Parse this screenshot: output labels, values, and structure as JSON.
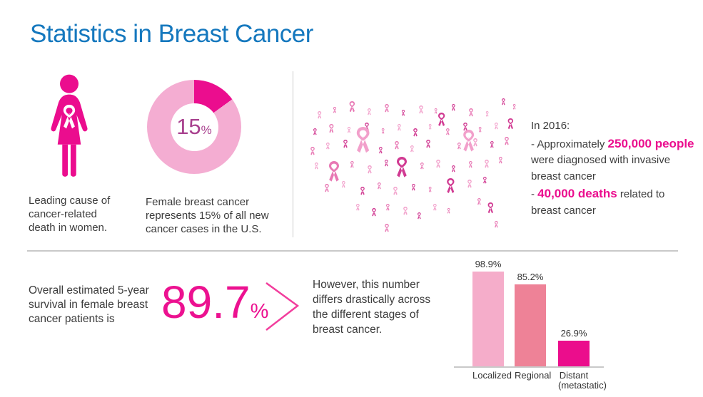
{
  "title": {
    "text": "Statistics in Breast Cancer",
    "color": "#1578BE"
  },
  "palette": {
    "title_blue": "#1578BE",
    "magenta": "#EB0D8E",
    "text_dark": "#3C3C3C",
    "divider_gray": "#C9C9C9"
  },
  "leading_cause": {
    "caption": "Leading cause of cancer-related death in women.",
    "figure_color": "#EB0D8E",
    "ribbon_color": "#FFFFFF"
  },
  "donut": {
    "percent": 15,
    "value": "15",
    "unit": "%",
    "ring_color": "#F4ADD2",
    "slice_color": "#EB0D8E",
    "label_color": "#A8408E",
    "caption": "Female breast cancer represents 15% of all new cancer cases in the U.S."
  },
  "map_section": {
    "heading": "In 2016:",
    "line1": {
      "prefix": "- Approximately ",
      "highlight": "250,000 people",
      "suffix": " were diagnosed with invasive breast cancer"
    },
    "line2": {
      "prefix": "- ",
      "highlight": "40,000 deaths",
      "suffix": " related to breast cancer"
    },
    "highlight_color": "#EB0D8E",
    "ribbon_palette": [
      "#F6BFDC",
      "#F2A0CB",
      "#E878B4",
      "#D13A92"
    ],
    "ribbons": [
      [
        14,
        30,
        11,
        1
      ],
      [
        36,
        24,
        9,
        2
      ],
      [
        58,
        16,
        16,
        2
      ],
      [
        84,
        26,
        10,
        1
      ],
      [
        108,
        20,
        12,
        2
      ],
      [
        132,
        28,
        9,
        3
      ],
      [
        156,
        22,
        12,
        1
      ],
      [
        178,
        26,
        8,
        2
      ],
      [
        202,
        20,
        10,
        3
      ],
      [
        226,
        26,
        12,
        2
      ],
      [
        250,
        30,
        8,
        1
      ],
      [
        272,
        12,
        10,
        3
      ],
      [
        288,
        20,
        8,
        2
      ],
      [
        8,
        54,
        10,
        3
      ],
      [
        30,
        48,
        13,
        2
      ],
      [
        56,
        52,
        9,
        1
      ],
      [
        80,
        46,
        12,
        3
      ],
      [
        104,
        54,
        8,
        2
      ],
      [
        126,
        48,
        10,
        1
      ],
      [
        148,
        54,
        12,
        3
      ],
      [
        170,
        48,
        8,
        1
      ],
      [
        194,
        54,
        10,
        2
      ],
      [
        218,
        46,
        12,
        3
      ],
      [
        240,
        52,
        8,
        2
      ],
      [
        262,
        46,
        10,
        1
      ],
      [
        280,
        40,
        16,
        3
      ],
      [
        4,
        80,
        12,
        2
      ],
      [
        26,
        74,
        10,
        1
      ],
      [
        50,
        70,
        12,
        3
      ],
      [
        66,
        52,
        38,
        1
      ],
      [
        100,
        80,
        10,
        3
      ],
      [
        122,
        72,
        12,
        2
      ],
      [
        144,
        78,
        10,
        1
      ],
      [
        166,
        70,
        12,
        3
      ],
      [
        182,
        32,
        20,
        3
      ],
      [
        210,
        74,
        10,
        2
      ],
      [
        232,
        68,
        12,
        1
      ],
      [
        216,
        56,
        32,
        1
      ],
      [
        256,
        72,
        10,
        3
      ],
      [
        276,
        66,
        12,
        2
      ],
      [
        10,
        102,
        10,
        1
      ],
      [
        28,
        100,
        30,
        2
      ],
      [
        60,
        100,
        10,
        2
      ],
      [
        84,
        106,
        12,
        1
      ],
      [
        108,
        98,
        10,
        3
      ],
      [
        123,
        94,
        30,
        3
      ],
      [
        158,
        102,
        10,
        2
      ],
      [
        180,
        98,
        12,
        1
      ],
      [
        202,
        106,
        10,
        3
      ],
      [
        194,
        124,
        22,
        3
      ],
      [
        226,
        100,
        10,
        2
      ],
      [
        248,
        98,
        12,
        1
      ],
      [
        268,
        94,
        10,
        2
      ],
      [
        24,
        132,
        12,
        2
      ],
      [
        48,
        128,
        10,
        1
      ],
      [
        74,
        136,
        12,
        3
      ],
      [
        98,
        130,
        10,
        2
      ],
      [
        120,
        136,
        12,
        1
      ],
      [
        146,
        132,
        10,
        3
      ],
      [
        170,
        136,
        8,
        2
      ],
      [
        224,
        126,
        12,
        1
      ],
      [
        246,
        122,
        10,
        3
      ],
      [
        68,
        160,
        10,
        1
      ],
      [
        90,
        166,
        12,
        3
      ],
      [
        110,
        160,
        10,
        2
      ],
      [
        134,
        164,
        12,
        1
      ],
      [
        154,
        172,
        10,
        3
      ],
      [
        176,
        160,
        10,
        1
      ],
      [
        196,
        166,
        8,
        2
      ],
      [
        238,
        152,
        10,
        2
      ],
      [
        252,
        158,
        16,
        3
      ],
      [
        262,
        184,
        10,
        2
      ],
      [
        108,
        188,
        12,
        2
      ]
    ]
  },
  "survival": {
    "lead": "Overall estimated 5-year survival in female breast cancer patients is",
    "value": "89.7",
    "unit": "%",
    "value_color": "#EC1190",
    "arrow_color": "#F23E9D",
    "note": "However, this number differs drastically across the different stages of breast cancer."
  },
  "chart_data": {
    "type": "bar",
    "title": "5-year survival by stage",
    "categories": [
      "Localized",
      "Regional",
      "Distant (metastatic)"
    ],
    "display_labels": [
      "Localized",
      "Regional",
      "Distant\n(metastatic)"
    ],
    "values": [
      98.9,
      85.2,
      26.9
    ],
    "value_labels": [
      "98.9%",
      "85.2%",
      "26.9%"
    ],
    "bar_colors": [
      "#F5ADCA",
      "#EE8297",
      "#EB0D8C"
    ],
    "ylim": [
      0,
      100
    ],
    "unit": "%",
    "grid": false,
    "legend": false
  }
}
